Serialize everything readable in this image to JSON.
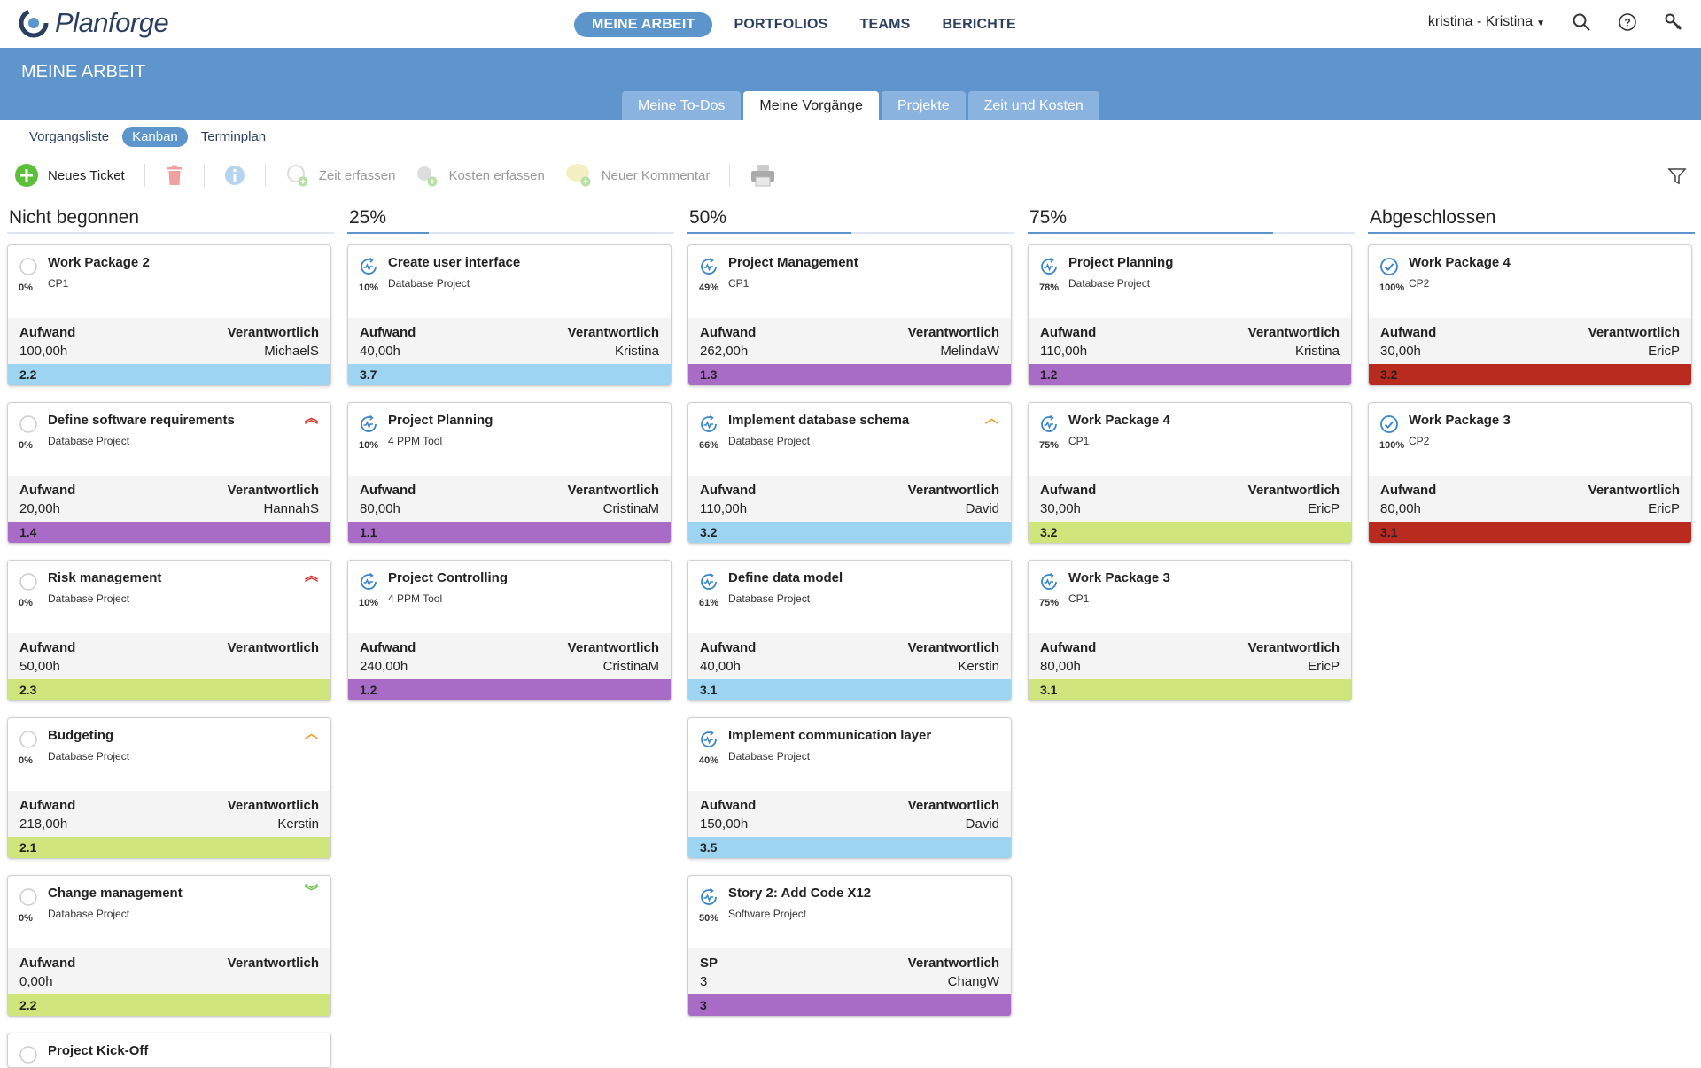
{
  "app": {
    "logo_text": "Planforge",
    "nav": [
      {
        "label": "MEINE ARBEIT",
        "active": true
      },
      {
        "label": "PORTFOLIOS",
        "active": false
      },
      {
        "label": "TEAMS",
        "active": false
      },
      {
        "label": "BERICHTE",
        "active": false
      }
    ],
    "user": "kristina - Kristina"
  },
  "header": {
    "title": "MEINE ARBEIT",
    "tabs": [
      {
        "label": "Meine To-Dos",
        "active": false
      },
      {
        "label": "Meine Vorgänge",
        "active": true
      },
      {
        "label": "Projekte",
        "active": false
      },
      {
        "label": "Zeit und Kosten",
        "active": false
      }
    ]
  },
  "views": [
    {
      "label": "Vorgangsliste",
      "active": false
    },
    {
      "label": "Kanban",
      "active": true
    },
    {
      "label": "Terminplan",
      "active": false
    }
  ],
  "toolbar": {
    "new_ticket": "Neues Ticket",
    "time": "Zeit erfassen",
    "costs": "Kosten erfassen",
    "comment": "Neuer Kommentar"
  },
  "colors": {
    "blue": "#9dd4f1",
    "purple": "#a86cc7",
    "green": "#cfe47a",
    "red": "#b92a1f",
    "prio_high": "#d0312d",
    "prio_med": "#f0a030",
    "prio_low": "#6cbf4a"
  },
  "board": {
    "columns": [
      {
        "title": "Nicht begonnen",
        "progress": 0,
        "cards": [
          {
            "title": "Work Package 2",
            "project": "CP1",
            "pct": "0%",
            "status": "open",
            "prio": "",
            "lab_l": "Aufwand",
            "val_l": "100,00h",
            "lab_r": "Verantwortlich",
            "val_r": "MichaelS",
            "code": "2.2",
            "color": "blue"
          },
          {
            "title": "Define software requirements",
            "project": "Database Project",
            "pct": "0%",
            "status": "open",
            "prio": "high",
            "lab_l": "Aufwand",
            "val_l": "20,00h",
            "lab_r": "Verantwortlich",
            "val_r": "HannahS",
            "code": "1.4",
            "color": "purple"
          },
          {
            "title": "Risk management",
            "project": "Database Project",
            "pct": "0%",
            "status": "open",
            "prio": "high",
            "lab_l": "Aufwand",
            "val_l": "50,00h",
            "lab_r": "Verantwortlich",
            "val_r": "",
            "code": "2.3",
            "color": "green"
          },
          {
            "title": "Budgeting",
            "project": "Database Project",
            "pct": "0%",
            "status": "open",
            "prio": "medium",
            "lab_l": "Aufwand",
            "val_l": "218,00h",
            "lab_r": "Verantwortlich",
            "val_r": "Kerstin",
            "code": "2.1",
            "color": "green"
          },
          {
            "title": "Change management",
            "project": "Database Project",
            "pct": "0%",
            "status": "open",
            "prio": "low",
            "lab_l": "Aufwand",
            "val_l": "0,00h",
            "lab_r": "Verantwortlich",
            "val_r": "",
            "code": "2.2",
            "color": "green"
          },
          {
            "title": "Project Kick-Off",
            "project": "",
            "pct": "",
            "status": "open",
            "prio": "",
            "partial": true
          }
        ]
      },
      {
        "title": "25%",
        "progress": 0.25,
        "cards": [
          {
            "title": "Create user interface",
            "project": "Database Project",
            "pct": "10%",
            "status": "progress",
            "prio": "",
            "lab_l": "Aufwand",
            "val_l": "40,00h",
            "lab_r": "Verantwortlich",
            "val_r": "Kristina",
            "code": "3.7",
            "color": "blue"
          },
          {
            "title": "Project Planning",
            "project": "4 PPM Tool",
            "pct": "10%",
            "status": "progress",
            "prio": "",
            "lab_l": "Aufwand",
            "val_l": "80,00h",
            "lab_r": "Verantwortlich",
            "val_r": "CristinaM",
            "code": "1.1",
            "color": "purple"
          },
          {
            "title": "Project Controlling",
            "project": "4 PPM Tool",
            "pct": "10%",
            "status": "progress",
            "prio": "",
            "lab_l": "Aufwand",
            "val_l": "240,00h",
            "lab_r": "Verantwortlich",
            "val_r": "CristinaM",
            "code": "1.2",
            "color": "purple"
          }
        ]
      },
      {
        "title": "50%",
        "progress": 0.5,
        "cards": [
          {
            "title": "Project Management",
            "project": "CP1",
            "pct": "49%",
            "status": "progress",
            "prio": "",
            "lab_l": "Aufwand",
            "val_l": "262,00h",
            "lab_r": "Verantwortlich",
            "val_r": "MelindaW",
            "code": "1.3",
            "color": "purple"
          },
          {
            "title": "Implement database schema",
            "project": "Database Project",
            "pct": "66%",
            "status": "progress",
            "prio": "medium",
            "lab_l": "Aufwand",
            "val_l": "110,00h",
            "lab_r": "Verantwortlich",
            "val_r": "David",
            "code": "3.2",
            "color": "blue"
          },
          {
            "title": "Define data model",
            "project": "Database Project",
            "pct": "61%",
            "status": "progress",
            "prio": "",
            "lab_l": "Aufwand",
            "val_l": "40,00h",
            "lab_r": "Verantwortlich",
            "val_r": "Kerstin",
            "code": "3.1",
            "color": "blue"
          },
          {
            "title": "Implement communication layer",
            "project": "Database Project",
            "pct": "40%",
            "status": "progress",
            "prio": "",
            "lab_l": "Aufwand",
            "val_l": "150,00h",
            "lab_r": "Verantwortlich",
            "val_r": "David",
            "code": "3.5",
            "color": "blue"
          },
          {
            "title": "Story 2: Add Code X12",
            "project": "Software Project",
            "pct": "50%",
            "status": "progress",
            "prio": "",
            "lab_l": "SP",
            "val_l": "3",
            "lab_r": "Verantwortlich",
            "val_r": "ChangW",
            "code": "3",
            "color": "purple"
          }
        ]
      },
      {
        "title": "75%",
        "progress": 0.75,
        "cards": [
          {
            "title": "Project Planning",
            "project": "Database Project",
            "pct": "78%",
            "status": "progress",
            "prio": "",
            "lab_l": "Aufwand",
            "val_l": "110,00h",
            "lab_r": "Verantwortlich",
            "val_r": "Kristina",
            "code": "1.2",
            "color": "purple"
          },
          {
            "title": "Work Package 4",
            "project": "CP1",
            "pct": "75%",
            "status": "progress",
            "prio": "",
            "lab_l": "Aufwand",
            "val_l": "30,00h",
            "lab_r": "Verantwortlich",
            "val_r": "EricP",
            "code": "3.2",
            "color": "green"
          },
          {
            "title": "Work Package 3",
            "project": "CP1",
            "pct": "75%",
            "status": "progress",
            "prio": "",
            "lab_l": "Aufwand",
            "val_l": "80,00h",
            "lab_r": "Verantwortlich",
            "val_r": "EricP",
            "code": "3.1",
            "color": "green"
          }
        ]
      },
      {
        "title": "Abgeschlossen",
        "progress": 1,
        "cards": [
          {
            "title": "Work Package 4",
            "project": "CP2",
            "pct": "100%",
            "status": "done",
            "prio": "",
            "lab_l": "Aufwand",
            "val_l": "30,00h",
            "lab_r": "Verantwortlich",
            "val_r": "EricP",
            "code": "3.2",
            "color": "red"
          },
          {
            "title": "Work Package 3",
            "project": "CP2",
            "pct": "100%",
            "status": "done",
            "prio": "",
            "lab_l": "Aufwand",
            "val_l": "80,00h",
            "lab_r": "Verantwortlich",
            "val_r": "EricP",
            "code": "3.1",
            "color": "red"
          }
        ]
      }
    ]
  }
}
